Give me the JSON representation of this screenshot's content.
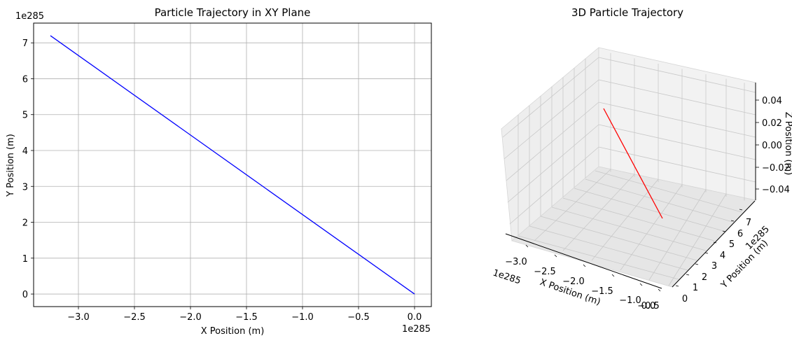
{
  "chart_data": [
    {
      "type": "line",
      "title": "Particle Trajectory in XY Plane",
      "xlabel": "X Position (m)",
      "ylabel": "Y Position (m)",
      "x_offset_label": "1e285",
      "y_offset_label": "1e285",
      "xlim": [
        -3.4,
        0.15
      ],
      "ylim": [
        -0.35,
        7.55
      ],
      "xticks": [
        -3.0,
        -2.5,
        -2.0,
        -1.5,
        -1.0,
        -0.5,
        0.0
      ],
      "xtick_labels": [
        "−3.0",
        "−2.5",
        "−2.0",
        "−1.5",
        "−1.0",
        "−0.5",
        "0.0"
      ],
      "yticks": [
        0,
        1,
        2,
        3,
        4,
        5,
        6,
        7
      ],
      "ytick_labels": [
        "0",
        "1",
        "2",
        "3",
        "4",
        "5",
        "6",
        "7"
      ],
      "grid": true,
      "series": [
        {
          "color": "#0000ff",
          "x": [
            -3.25,
            0.0
          ],
          "y": [
            7.2,
            0.0
          ]
        }
      ]
    },
    {
      "type": "line",
      "projection": "3d",
      "title": "3D Particle Trajectory",
      "xlabel": "X Position (m)",
      "ylabel": "Y Position (m)",
      "zlabel": "Z Position (m)",
      "x_offset_label": "1e285",
      "y_offset_label": "1e285",
      "xtick_labels": [
        "−3.0",
        "−2.5",
        "−2.0",
        "−1.5",
        "−1.0",
        "−0.5",
        "0.0"
      ],
      "ytick_labels": [
        "0",
        "1",
        "2",
        "3",
        "4",
        "5",
        "6",
        "7"
      ],
      "ztick_labels": [
        "0.04",
        "0.02",
        "0.00",
        "−0.02",
        "−0.04"
      ],
      "zticks": [
        0.04,
        0.02,
        0.0,
        -0.02,
        -0.04
      ],
      "grid": true,
      "series": [
        {
          "color": "#ff0000",
          "x": [
            -3.25,
            0.0
          ],
          "y": [
            7.2,
            0.0
          ],
          "z": [
            0.0,
            0.0
          ]
        }
      ]
    }
  ]
}
